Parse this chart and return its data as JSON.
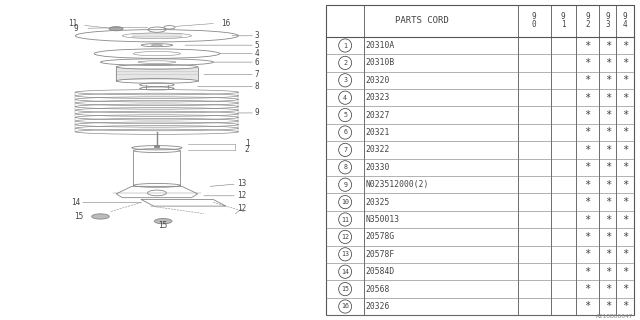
{
  "bg_color": "#ffffff",
  "parts": [
    {
      "num": "1",
      "code": "20310A"
    },
    {
      "num": "2",
      "code": "20310B"
    },
    {
      "num": "3",
      "code": "20320"
    },
    {
      "num": "4",
      "code": "20323"
    },
    {
      "num": "5",
      "code": "20327"
    },
    {
      "num": "6",
      "code": "20321"
    },
    {
      "num": "7",
      "code": "20322"
    },
    {
      "num": "8",
      "code": "20330"
    },
    {
      "num": "9",
      "code": "N023512000(2)"
    },
    {
      "num": "10",
      "code": "20325"
    },
    {
      "num": "11",
      "code": "N350013"
    },
    {
      "num": "12",
      "code": "20578G"
    },
    {
      "num": "13",
      "code": "20578F"
    },
    {
      "num": "14",
      "code": "20584D"
    },
    {
      "num": "15",
      "code": "20568"
    },
    {
      "num": "16",
      "code": "20326"
    }
  ],
  "col_headers": [
    "9\n0",
    "9\n1",
    "9\n2",
    "9\n3",
    "9\n4"
  ],
  "dc": "#888888",
  "tc": "#444444",
  "watermark": "A210B00047"
}
